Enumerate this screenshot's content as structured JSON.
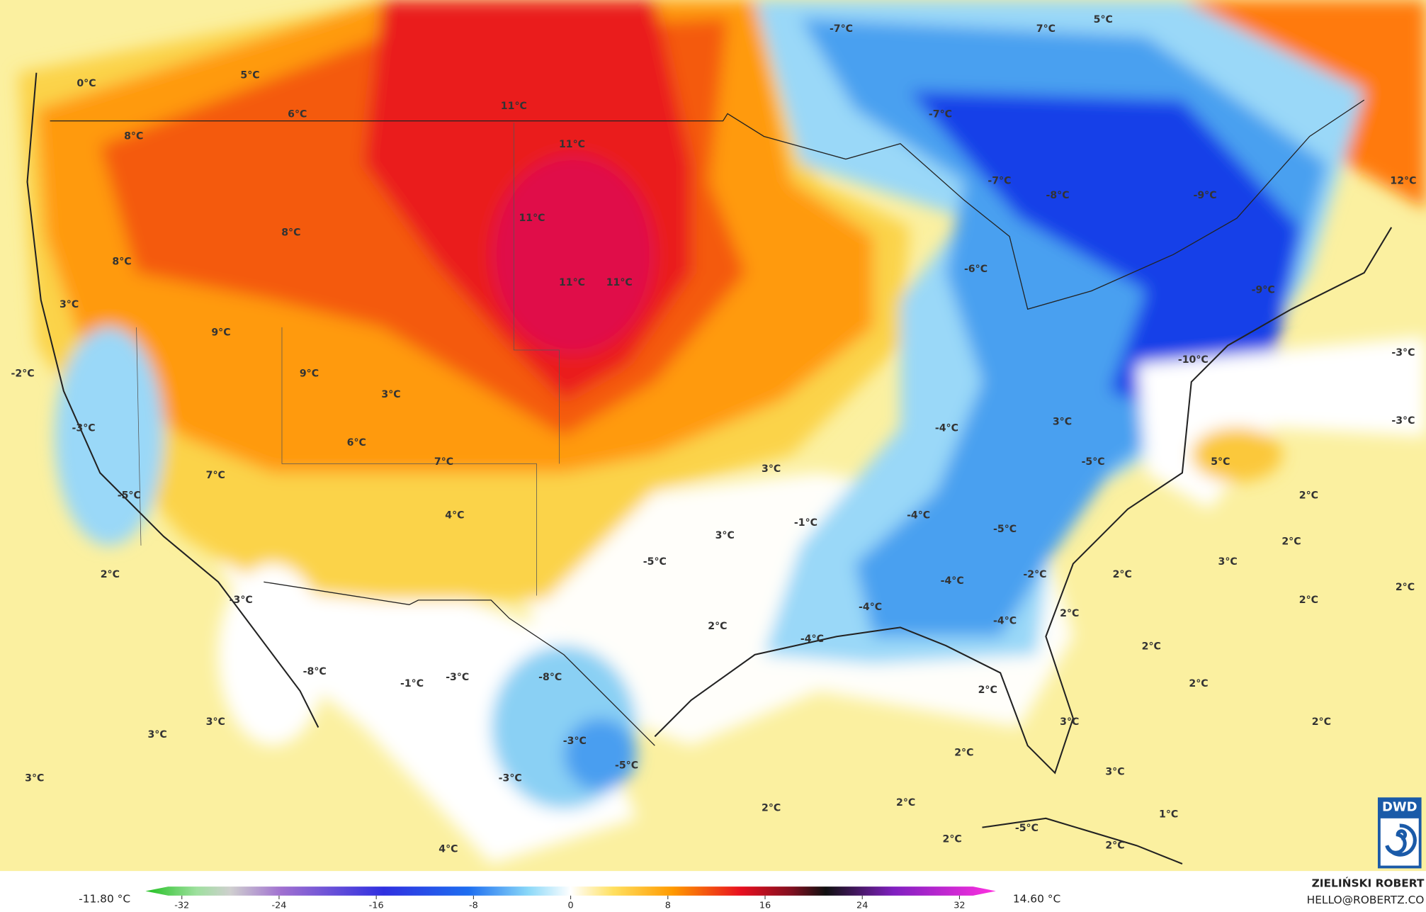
{
  "map_labels": [
    "0°C",
    "5°C",
    "6°C",
    "11°C",
    "-7°C",
    "7°C",
    "5°C",
    "8°C",
    "11°C",
    "-7°C",
    "8°C",
    "11°C",
    "-7°C",
    "-8°C",
    "-9°C",
    "12°C",
    "8°C",
    "-6°C",
    "3°C",
    "11°C",
    "11°C",
    "-9°C",
    "9°C",
    "-2°C",
    "9°C",
    "3°C",
    "-10°C",
    "-3°C",
    "-3°C",
    "6°C",
    "-4°C",
    "3°C",
    "-3°C",
    "7°C",
    "7°C",
    "3°C",
    "-5°C",
    "5°C",
    "-5°C",
    "4°C",
    "-1°C",
    "-4°C",
    "-5°C",
    "2°C",
    "3°C",
    "2°C",
    "2°C",
    "-5°C",
    "-2°C",
    "2°C",
    "3°C",
    "-3°C",
    "-4°C",
    "2°C",
    "2°C",
    "-4°C",
    "2°C",
    "-4°C",
    "2°C",
    "-4°C",
    "2°C",
    "-8°C",
    "-1°C",
    "-3°C",
    "-8°C",
    "2°C",
    "2°C",
    "3°C",
    "3°C",
    "-3°C",
    "3°C",
    "2°C",
    "2°C",
    "3°C",
    "-3°C",
    "-5°C",
    "3°C",
    "2°C",
    "2°C",
    "1°C",
    "-5°C",
    "2°C",
    "2°C",
    "4°C"
  ],
  "colorbar": {
    "ticks": [
      -32,
      -24,
      -16,
      -8,
      0,
      8,
      16,
      24,
      32
    ],
    "min_label": "-11.80 °C",
    "max_label": "14.60 °C"
  },
  "credit": {
    "author": "ZIELIŃSKI ROBERT",
    "email": "HELLO@ROBERTZ.CO"
  },
  "logo": "DWD"
}
